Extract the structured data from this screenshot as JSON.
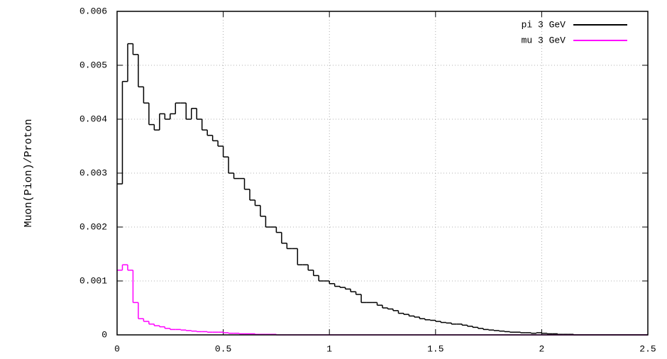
{
  "chart_data": {
    "type": "histogram",
    "ylabel": "Muon(Pion)/Proton",
    "bins": [
      0,
      0.025,
      0.05,
      0.075,
      0.1,
      0.125,
      0.15,
      0.175,
      0.2,
      0.225,
      0.25,
      0.275,
      0.3,
      0.325,
      0.35,
      0.375,
      0.4,
      0.425,
      0.45,
      0.475,
      0.5,
      0.525,
      0.55,
      0.575,
      0.6,
      0.625,
      0.65,
      0.675,
      0.7,
      0.725,
      0.75,
      0.775,
      0.8,
      0.825,
      0.85,
      0.875,
      0.9,
      0.925,
      0.95,
      0.975,
      1,
      1.025,
      1.05,
      1.075,
      1.1,
      1.125,
      1.15,
      1.175,
      1.2,
      1.225,
      1.25,
      1.275,
      1.3,
      1.325,
      1.35,
      1.375,
      1.4,
      1.425,
      1.45,
      1.475,
      1.5,
      1.525,
      1.55,
      1.575,
      1.6,
      1.625,
      1.65,
      1.675,
      1.7,
      1.725,
      1.75,
      1.775,
      1.8,
      1.825,
      1.85,
      1.875,
      1.9,
      1.925,
      1.95,
      1.975,
      2,
      2.025,
      2.05,
      2.075,
      2.1,
      2.125,
      2.15,
      2.175,
      2.2,
      2.225,
      2.25,
      2.275,
      2.3,
      2.325,
      2.35,
      2.375,
      2.4,
      2.425,
      2.45,
      2.475,
      2.5
    ],
    "series": [
      {
        "name": "pi 3 GeV",
        "color": "#000000",
        "values": [
          0.0028,
          0.0047,
          0.0054,
          0.0052,
          0.0046,
          0.0043,
          0.0039,
          0.0038,
          0.0041,
          0.004,
          0.0041,
          0.0043,
          0.0043,
          0.004,
          0.0042,
          0.004,
          0.0038,
          0.0037,
          0.0036,
          0.0035,
          0.0033,
          0.003,
          0.0029,
          0.0029,
          0.0027,
          0.0025,
          0.0024,
          0.0022,
          0.002,
          0.002,
          0.0019,
          0.0017,
          0.0016,
          0.0016,
          0.0013,
          0.0013,
          0.0012,
          0.0011,
          0.001,
          0.001,
          0.00095,
          0.0009,
          0.00088,
          0.00085,
          0.0008,
          0.00075,
          0.0006,
          0.0006,
          0.0006,
          0.00055,
          0.0005,
          0.00048,
          0.00045,
          0.0004,
          0.00038,
          0.00035,
          0.00033,
          0.0003,
          0.00028,
          0.00027,
          0.00025,
          0.00023,
          0.00022,
          0.0002,
          0.0002,
          0.00018,
          0.00016,
          0.00014,
          0.00012,
          0.0001,
          9e-05,
          8e-05,
          7e-05,
          6e-05,
          5e-05,
          5e-05,
          4e-05,
          4e-05,
          3e-05,
          4e-05,
          3e-05,
          2e-05,
          2e-05,
          1e-05,
          1e-05,
          1e-05,
          0,
          0,
          0,
          0,
          0,
          0,
          0,
          0,
          0,
          0,
          0,
          0,
          0,
          0
        ]
      },
      {
        "name": "mu 3 GeV",
        "color": "#ff00ff",
        "values": [
          0.0012,
          0.0013,
          0.0012,
          0.0006,
          0.0003,
          0.00025,
          0.0002,
          0.00017,
          0.00015,
          0.00012,
          0.0001,
          0.0001,
          9e-05,
          8e-05,
          7e-05,
          6e-05,
          6e-05,
          5e-05,
          5e-05,
          5e-05,
          4e-05,
          3e-05,
          3e-05,
          2e-05,
          2e-05,
          2e-05,
          1e-05,
          1e-05,
          1e-05,
          1e-05,
          0,
          0,
          0,
          0,
          0,
          0,
          0,
          0,
          0,
          0,
          0,
          0,
          0,
          0,
          0,
          0,
          0,
          0,
          0,
          0,
          0,
          0,
          0,
          0,
          0,
          0,
          0,
          0,
          0,
          0,
          0,
          0,
          0,
          0,
          0,
          0,
          0,
          0,
          0,
          0,
          0,
          0,
          0,
          0,
          0,
          0,
          0,
          0,
          0,
          0,
          0,
          0,
          0,
          0,
          0,
          0,
          0,
          0,
          0,
          0,
          0,
          0,
          0,
          0,
          0,
          0,
          0,
          0,
          0,
          0
        ]
      }
    ],
    "xlim": [
      0,
      2.5
    ],
    "xticks": [
      0,
      0.5,
      1,
      1.5,
      2,
      2.5
    ],
    "ylim": [
      0,
      0.006
    ],
    "yticks": [
      0,
      0.001,
      0.002,
      0.003,
      0.004,
      0.005,
      0.006
    ],
    "grid": true,
    "legend": "top-right"
  }
}
